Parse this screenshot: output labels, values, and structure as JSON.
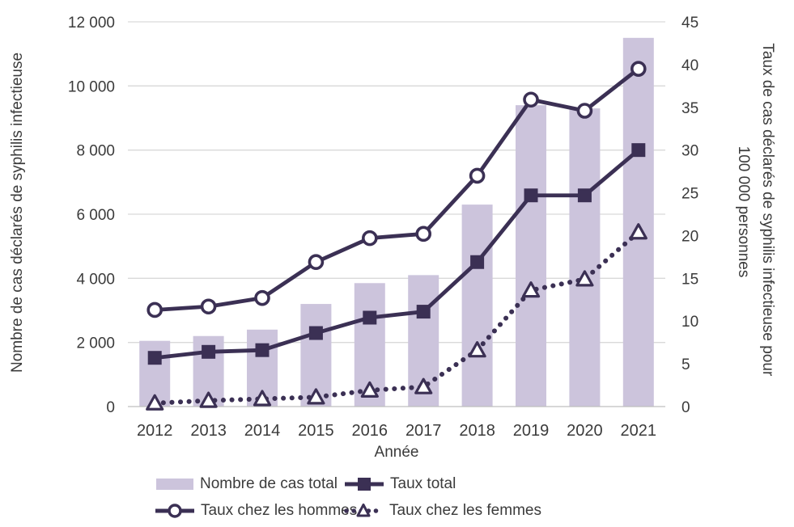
{
  "chart_data": {
    "type": "combo-bar-line",
    "title": "",
    "xlabel": "Année",
    "categories": [
      "2012",
      "2013",
      "2014",
      "2015",
      "2016",
      "2017",
      "2018",
      "2019",
      "2020",
      "2021"
    ],
    "left_axis": {
      "title": "Nombre de cas déclarés de syphilis infectieuse",
      "min": 0,
      "max": 12000,
      "step": 2000,
      "tick_values": [
        0,
        2000,
        4000,
        6000,
        8000,
        10000,
        12000
      ],
      "tick_labels": [
        "0",
        "2 000",
        "4 000",
        "6 000",
        "8 000",
        "10 000",
        "12 000"
      ]
    },
    "right_axis": {
      "title_line1": "Taux de cas déclarés de syphilis infectieuse pour",
      "title_line2": "100 000 personnes",
      "min": 0,
      "max": 45,
      "step": 5,
      "tick_values": [
        0,
        5,
        10,
        15,
        20,
        25,
        30,
        35,
        40,
        45
      ],
      "tick_labels": [
        "0",
        "5",
        "10",
        "15",
        "20",
        "25",
        "30",
        "35",
        "40",
        "45"
      ]
    },
    "grid": true,
    "legend_position": "bottom",
    "series": [
      {
        "name": "Nombre de cas total",
        "type": "bar",
        "axis": "left",
        "values": [
          2050,
          2200,
          2400,
          3200,
          3850,
          4100,
          6300,
          9400,
          9300,
          11500
        ]
      },
      {
        "name": "Taux total",
        "type": "line",
        "style": "solid",
        "marker": "filled-square",
        "axis": "right",
        "values": [
          5.7,
          6.4,
          6.6,
          8.6,
          10.4,
          11.1,
          16.9,
          24.7,
          24.7,
          30.0
        ]
      },
      {
        "name": "Taux chez les hommes",
        "type": "line",
        "style": "solid",
        "marker": "open-circle",
        "axis": "right",
        "values": [
          11.3,
          11.7,
          12.7,
          16.9,
          19.7,
          20.2,
          27.0,
          35.9,
          34.6,
          39.5
        ]
      },
      {
        "name": "Taux chez les femmes",
        "type": "line",
        "style": "dotted",
        "marker": "open-triangle",
        "axis": "right",
        "values": [
          0.4,
          0.7,
          0.9,
          1.1,
          1.9,
          2.3,
          6.6,
          13.6,
          14.9,
          20.4
        ]
      }
    ],
    "colors": {
      "bar": "#CCC4DC",
      "line": "#3B3054",
      "grid": "#D9D9D9",
      "axis": "#BFBFBF",
      "text": "#3B3B3B"
    }
  }
}
